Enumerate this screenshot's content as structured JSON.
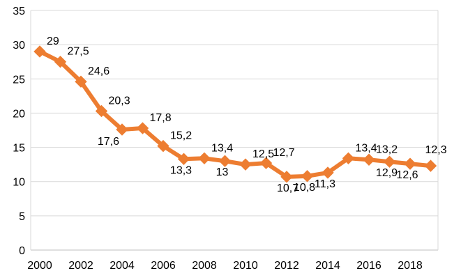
{
  "chart_data": {
    "type": "line",
    "title": "",
    "xlabel": "",
    "ylabel": "",
    "x": [
      2000,
      2001,
      2002,
      2003,
      2004,
      2005,
      2006,
      2007,
      2008,
      2009,
      2010,
      2011,
      2012,
      2013,
      2014,
      2015,
      2016,
      2017,
      2018,
      2019
    ],
    "x_tick_labels": [
      "2000",
      "2002",
      "2004",
      "2006",
      "2008",
      "2010",
      "2012",
      "2014",
      "2016",
      "2018"
    ],
    "y_tick_labels": [
      "0",
      "5",
      "10",
      "15",
      "20",
      "25",
      "30",
      "35"
    ],
    "ylim": [
      0,
      35
    ],
    "grid": "horizontal",
    "legend": "none",
    "series": [
      {
        "values": [
          29,
          27.5,
          24.6,
          20.3,
          17.6,
          17.8,
          15.2,
          13.3,
          13.4,
          13,
          12.5,
          12.7,
          10.7,
          10.8,
          11.3,
          13.4,
          13.2,
          12.9,
          12.6,
          12.3
        ],
        "labels": [
          "29",
          "27,5",
          "24,6",
          "20,3",
          "17,6",
          "17,8",
          "15,2",
          "13,3",
          "13,4",
          "13",
          "12,5",
          "12,7",
          "10,7",
          "10,8",
          "11,3",
          "13,4",
          "13,2",
          "12,9",
          "12,6",
          "12,3"
        ],
        "color": "#ED7D31",
        "marker": "diamond"
      }
    ]
  }
}
